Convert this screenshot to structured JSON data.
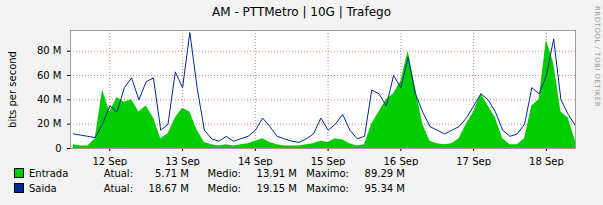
{
  "chart_data": {
    "type": "line",
    "title": "AM - PTTMetro | 10G | Trafego",
    "y_label": "bits per second",
    "watermark": "RRDTOOL / TOBI OETIKER",
    "x": [
      11.5,
      11.6,
      11.7,
      11.8,
      11.9,
      12.0,
      12.1,
      12.2,
      12.3,
      12.4,
      12.5,
      12.6,
      12.7,
      12.8,
      12.9,
      13.0,
      13.1,
      13.2,
      13.3,
      13.4,
      13.5,
      13.6,
      13.7,
      13.8,
      13.9,
      14.0,
      14.1,
      14.2,
      14.3,
      14.4,
      14.5,
      14.6,
      14.7,
      14.8,
      14.9,
      15.0,
      15.1,
      15.2,
      15.3,
      15.4,
      15.5,
      15.6,
      15.7,
      15.8,
      15.9,
      16.0,
      16.1,
      16.2,
      16.3,
      16.4,
      16.5,
      16.6,
      16.7,
      16.8,
      16.9,
      17.0,
      17.1,
      17.2,
      17.3,
      17.4,
      17.5,
      17.6,
      17.7,
      17.8,
      17.9,
      18.0,
      18.1,
      18.2,
      18.3,
      18.4
    ],
    "xlim": [
      11.46,
      18.4
    ],
    "xticks": [
      {
        "value": 12,
        "label": "12 Sep"
      },
      {
        "value": 13,
        "label": "13 Sep"
      },
      {
        "value": 14,
        "label": "14 Sep"
      },
      {
        "value": 15,
        "label": "15 Sep"
      },
      {
        "value": 16,
        "label": "16 Sep"
      },
      {
        "value": 17,
        "label": "17 Sep"
      },
      {
        "value": 18,
        "label": "18 Sep"
      }
    ],
    "ylim": [
      0,
      97
    ],
    "yticks": [
      0,
      {
        "value": 20,
        "label": "20 M"
      },
      {
        "value": 40,
        "label": "40 M"
      },
      {
        "value": 60,
        "label": "60 M"
      },
      {
        "value": 80,
        "label": "80 M"
      }
    ],
    "grid": true,
    "stat_names": [
      "Atual:",
      "Medio:",
      "Maximo:"
    ],
    "series": [
      {
        "name": "Entrada",
        "type": "area",
        "color": "#00cc00",
        "values": [
          3,
          2,
          2,
          8,
          48,
          30,
          42,
          38,
          40,
          30,
          35,
          25,
          8,
          12,
          25,
          33,
          30,
          15,
          5,
          3,
          2,
          3,
          2,
          3,
          4,
          6,
          8,
          5,
          3,
          2,
          2,
          2,
          3,
          4,
          6,
          5,
          8,
          7,
          4,
          2,
          3,
          20,
          30,
          40,
          45,
          55,
          80,
          50,
          20,
          6,
          4,
          3,
          4,
          8,
          20,
          30,
          45,
          35,
          25,
          8,
          3,
          3,
          8,
          35,
          40,
          89.29,
          70,
          30,
          25,
          5.71
        ],
        "stats": [
          "5.71 M",
          "13.91 M",
          "89.29 M"
        ]
      },
      {
        "name": "Saida",
        "type": "line",
        "color": "#002a97",
        "values": [
          12,
          11,
          10,
          9,
          20,
          35,
          30,
          50,
          58,
          40,
          55,
          58,
          15,
          20,
          63,
          50,
          95.34,
          50,
          15,
          8,
          6,
          10,
          6,
          8,
          10,
          15,
          25,
          18,
          10,
          8,
          6,
          5,
          8,
          12,
          25,
          15,
          20,
          28,
          15,
          8,
          10,
          48,
          45,
          35,
          60,
          50,
          75,
          45,
          30,
          18,
          15,
          12,
          15,
          18,
          25,
          35,
          45,
          40,
          30,
          15,
          10,
          12,
          20,
          50,
          45,
          60,
          90,
          40,
          28,
          18.67
        ],
        "stats": [
          "18.67 M",
          "19.15 M",
          "95.34 M"
        ]
      }
    ]
  }
}
